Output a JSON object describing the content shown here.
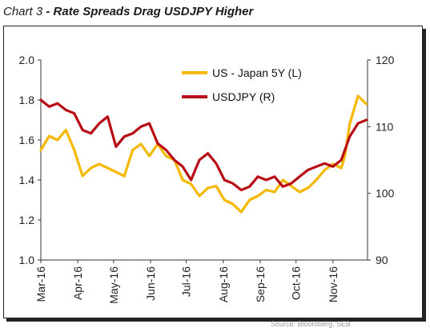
{
  "header": {
    "chart_label": "Chart 3",
    "separator": "-",
    "title": "Rate Spreads Drag USDJPY Higher"
  },
  "footer": {
    "source_text": "Source: Bloomberg, SEB"
  },
  "colors": {
    "us_japan_spread": "#F5B800",
    "usdjpy": "#B80D14",
    "axis": "#333333"
  },
  "chart_data": {
    "type": "line",
    "x_tick_labels": [
      "Mar-16",
      "Apr-16",
      "May-16",
      "Jun-16",
      "Jul-16",
      "Aug-16",
      "Sep-16",
      "Oct-16",
      "Nov-16"
    ],
    "left_axis": {
      "ticks": [
        "2.0",
        "1.8",
        "1.6",
        "1.4",
        "1.2",
        "1.0"
      ],
      "ylim": [
        1.0,
        2.0
      ]
    },
    "right_axis": {
      "ticks": [
        "120",
        "110",
        "100",
        "90"
      ],
      "ylim": [
        90,
        120
      ]
    },
    "legend_placement": "top-center",
    "grid": false,
    "series": [
      {
        "name": "US - Japan 5Y (L)",
        "axis": "left",
        "x": [
          "2016-03-01",
          "2016-03-08",
          "2016-03-15",
          "2016-03-22",
          "2016-03-29",
          "2016-04-05",
          "2016-04-12",
          "2016-04-19",
          "2016-04-26",
          "2016-05-03",
          "2016-05-10",
          "2016-05-17",
          "2016-05-24",
          "2016-05-31",
          "2016-06-07",
          "2016-06-14",
          "2016-06-21",
          "2016-06-28",
          "2016-07-05",
          "2016-07-12",
          "2016-07-19",
          "2016-07-26",
          "2016-08-02",
          "2016-08-09",
          "2016-08-16",
          "2016-08-23",
          "2016-08-30",
          "2016-09-06",
          "2016-09-13",
          "2016-09-20",
          "2016-09-27",
          "2016-10-04",
          "2016-10-11",
          "2016-10-18",
          "2016-10-25",
          "2016-11-01",
          "2016-11-08",
          "2016-11-11",
          "2016-11-15",
          "2016-11-22",
          "2016-11-29"
        ],
        "values": [
          1.55,
          1.62,
          1.6,
          1.65,
          1.55,
          1.42,
          1.46,
          1.48,
          1.46,
          1.44,
          1.42,
          1.55,
          1.58,
          1.52,
          1.58,
          1.52,
          1.5,
          1.4,
          1.38,
          1.32,
          1.36,
          1.37,
          1.3,
          1.28,
          1.24,
          1.3,
          1.32,
          1.35,
          1.34,
          1.4,
          1.37,
          1.34,
          1.36,
          1.4,
          1.45,
          1.48,
          1.46,
          1.52,
          1.68,
          1.82,
          1.78
        ],
        "color_key": "us_japan_spread"
      },
      {
        "name": "USDJPY (R)",
        "axis": "right",
        "x": [
          "2016-03-01",
          "2016-03-08",
          "2016-03-15",
          "2016-03-22",
          "2016-03-29",
          "2016-04-05",
          "2016-04-12",
          "2016-04-19",
          "2016-04-26",
          "2016-05-03",
          "2016-05-10",
          "2016-05-17",
          "2016-05-24",
          "2016-05-31",
          "2016-06-07",
          "2016-06-14",
          "2016-06-21",
          "2016-06-28",
          "2016-07-05",
          "2016-07-12",
          "2016-07-19",
          "2016-07-26",
          "2016-08-02",
          "2016-08-09",
          "2016-08-16",
          "2016-08-23",
          "2016-08-30",
          "2016-09-06",
          "2016-09-13",
          "2016-09-20",
          "2016-09-27",
          "2016-10-04",
          "2016-10-11",
          "2016-10-18",
          "2016-10-25",
          "2016-11-01",
          "2016-11-08",
          "2016-11-11",
          "2016-11-15",
          "2016-11-22",
          "2016-11-29"
        ],
        "values": [
          114.0,
          113.0,
          113.5,
          112.5,
          112.0,
          109.5,
          109.0,
          110.5,
          111.5,
          107.0,
          108.5,
          109.0,
          110.0,
          110.5,
          107.5,
          106.5,
          105.0,
          104.0,
          102.0,
          105.0,
          106.0,
          104.5,
          102.0,
          101.5,
          100.5,
          101.0,
          102.5,
          102.0,
          102.5,
          101.0,
          101.5,
          102.5,
          103.5,
          104.0,
          104.5,
          104.0,
          105.0,
          106.5,
          108.5,
          110.5,
          111.0
        ],
        "color_key": "usdjpy"
      }
    ]
  }
}
